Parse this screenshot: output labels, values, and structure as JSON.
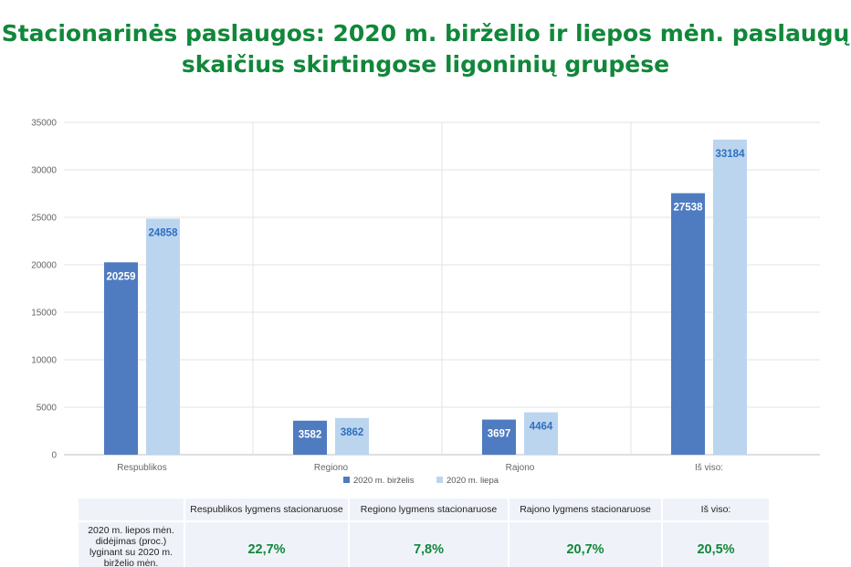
{
  "title": {
    "line1": "Stacionarinės paslaugos: 2020 m. birželio ir  liepos mėn. paslaugų",
    "line2": "skaičius skirtingose ligoninių grupėse"
  },
  "chart_data": {
    "type": "bar",
    "categories": [
      "Respublikos",
      "Regiono",
      "Rajono",
      "Iš viso:"
    ],
    "series": [
      {
        "name": "2020 m. birželis",
        "values": [
          20259,
          3582,
          3697,
          27538
        ],
        "color": "#4f7bc0"
      },
      {
        "name": "2020 m. liepa",
        "values": [
          24858,
          3862,
          4464,
          33184
        ],
        "color": "#bcd5ef"
      }
    ],
    "ylim": [
      0,
      35000
    ],
    "yticks": [
      0,
      5000,
      10000,
      15000,
      20000,
      25000,
      30000,
      35000
    ],
    "grid": true,
    "legend": "bottom",
    "data_labels": true,
    "title": "",
    "xlabel": "",
    "ylabel": ""
  },
  "table": {
    "headers": [
      "",
      "Respublikos lygmens stacionaruose",
      "Regiono lygmens stacionaruose",
      "Rajono lygmens stacionaruose",
      "Iš viso:"
    ],
    "row_label_lines": [
      "2020 m. liepos mėn.",
      "didėjimas (proc.)",
      "lyginant su 2020 m.",
      "birželio mėn."
    ],
    "values": [
      "22,7%",
      "7,8%",
      "20,7%",
      "20,5%"
    ]
  }
}
